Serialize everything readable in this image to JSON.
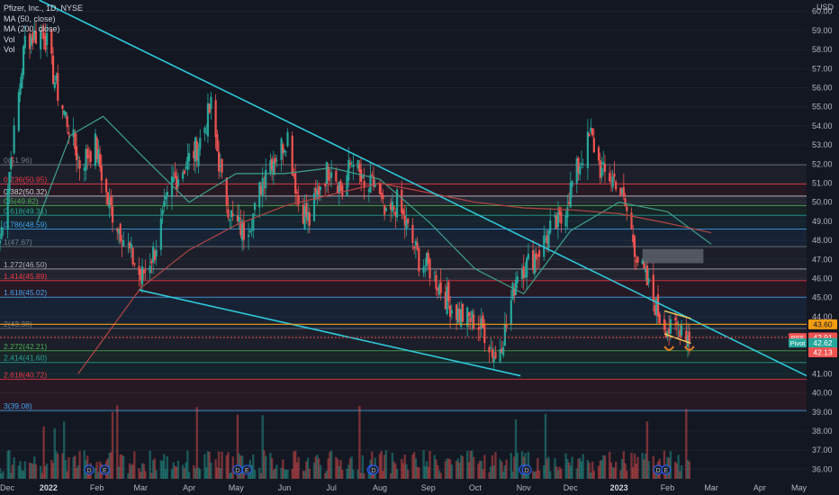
{
  "header": {
    "symbol_title": "Pfizer, Inc., 1D, NYSE",
    "indicators": [
      "MA (50, close)",
      "MA (200, close)",
      "Vol",
      "Vol"
    ],
    "currency": "USD"
  },
  "colors": {
    "background": "#131722",
    "up_candle": "#26a69a",
    "down_candle": "#ef5350",
    "trendline": "#2ec7d8",
    "ma50": "#3fa08c",
    "ma200": "#b24545",
    "fib_line": "#5a6c8a",
    "price_badge": "#ef5350",
    "orange_level": "#f39c12",
    "pattern": "#e67e22"
  },
  "fib_levels": [
    {
      "label": "0(51.96)",
      "price": 51.96,
      "color": "#787b86"
    },
    {
      "label": "0.236(50.95)",
      "price": 50.95,
      "color": "#f23645"
    },
    {
      "label": "0.382(50.32)",
      "price": 50.32,
      "color": "#d1d4dc"
    },
    {
      "label": "0.5(49.82)",
      "price": 49.82,
      "color": "#4caf50"
    },
    {
      "label": "0.618(49.31)",
      "price": 49.31,
      "color": "#26a69a"
    },
    {
      "label": "0.786(48.59)",
      "price": 48.59,
      "color": "#42a5f5"
    },
    {
      "label": "1(47.67)",
      "price": 47.67,
      "color": "#787b86"
    },
    {
      "label": "1.272(46.50)",
      "price": 46.5,
      "color": "#b2b5be"
    },
    {
      "label": "1.414(45.89)",
      "price": 45.89,
      "color": "#f23645"
    },
    {
      "label": "1.618(45.02)",
      "price": 45.02,
      "color": "#42a5f5"
    },
    {
      "label": "2(43.38)",
      "price": 43.38,
      "color": "#787b86"
    },
    {
      "label": "2.272(42.21)",
      "price": 42.21,
      "color": "#4caf50"
    },
    {
      "label": "2.414(41.60)",
      "price": 41.6,
      "color": "#26a69a"
    },
    {
      "label": "2.618(40.72)",
      "price": 40.72,
      "color": "#f23645"
    },
    {
      "label": "3(39.08)",
      "price": 39.08,
      "color": "#42a5f5"
    }
  ],
  "price_labels": [
    {
      "text": "43.60",
      "price": 43.6,
      "bg": "#f39c12",
      "fg": "#131722"
    },
    {
      "text": "PFE",
      "price": 42.9,
      "bg": "#ef5350",
      "fg": "#ffffff",
      "pos": "tag"
    },
    {
      "text": "42.91",
      "price": 42.91,
      "bg": "#ef5350",
      "fg": "#ffffff"
    },
    {
      "text": "Pivot",
      "price": 42.62,
      "bg": "#26a69a",
      "fg": "#ffffff",
      "pos": "tag"
    },
    {
      "text": "42.62",
      "price": 42.62,
      "bg": "#26a69a",
      "fg": "#ffffff"
    },
    {
      "text": "42.13",
      "price": 42.13,
      "bg": "#ef5350",
      "fg": "#ffffff"
    }
  ],
  "chart_data": {
    "type": "candlestick",
    "title": "Pfizer, Inc., 1D, NYSE",
    "ylabel": "USD",
    "ylim": [
      35.5,
      60.6
    ],
    "y_ticks": [
      36.0,
      37.0,
      38.0,
      39.0,
      40.0,
      41.0,
      42.0,
      43.0,
      44.0,
      45.0,
      46.0,
      47.0,
      48.0,
      49.0,
      50.0,
      51.0,
      52.0,
      53.0,
      54.0,
      55.0,
      56.0,
      57.0,
      58.0,
      59.0,
      60.0
    ],
    "x_ticks": [
      "Dec",
      "2022",
      "Feb",
      "Mar",
      "Apr",
      "May",
      "Jun",
      "Jul",
      "Aug",
      "Sep",
      "Oct",
      "Nov",
      "Dec",
      "2023",
      "Feb",
      "Mar",
      "Apr",
      "May"
    ],
    "x_range": [
      "2021-12-01",
      "2023-05-01"
    ],
    "close_series_anchors": [
      [
        "2021-12-01",
        48.0
      ],
      [
        "2021-12-10",
        53.5
      ],
      [
        "2021-12-17",
        58.5
      ],
      [
        "2021-12-29",
        59.0
      ],
      [
        "2022-01-06",
        56.0
      ],
      [
        "2022-01-14",
        54.0
      ],
      [
        "2022-01-21",
        52.0
      ],
      [
        "2022-01-31",
        53.0
      ],
      [
        "2022-02-08",
        50.0
      ],
      [
        "2022-02-16",
        48.5
      ],
      [
        "2022-02-24",
        47.0
      ],
      [
        "2022-03-01",
        46.0
      ],
      [
        "2022-03-10",
        47.5
      ],
      [
        "2022-03-21",
        51.0
      ],
      [
        "2022-03-30",
        52.0
      ],
      [
        "2022-04-07",
        53.0
      ],
      [
        "2022-04-15",
        55.0
      ],
      [
        "2022-04-22",
        51.0
      ],
      [
        "2022-04-29",
        49.0
      ],
      [
        "2022-05-06",
        48.5
      ],
      [
        "2022-05-13",
        49.5
      ],
      [
        "2022-05-20",
        52.0
      ],
      [
        "2022-05-27",
        52.5
      ],
      [
        "2022-06-03",
        53.5
      ],
      [
        "2022-06-10",
        50.0
      ],
      [
        "2022-06-17",
        49.0
      ],
      [
        "2022-06-24",
        51.0
      ],
      [
        "2022-07-01",
        52.0
      ],
      [
        "2022-07-08",
        50.5
      ],
      [
        "2022-07-15",
        52.5
      ],
      [
        "2022-07-22",
        50.5
      ],
      [
        "2022-07-29",
        51.0
      ],
      [
        "2022-08-05",
        49.0
      ],
      [
        "2022-08-12",
        50.0
      ],
      [
        "2022-08-19",
        48.5
      ],
      [
        "2022-08-26",
        47.0
      ],
      [
        "2022-09-02",
        46.5
      ],
      [
        "2022-09-09",
        45.5
      ],
      [
        "2022-09-16",
        44.5
      ],
      [
        "2022-09-23",
        44.0
      ],
      [
        "2022-09-30",
        43.8
      ],
      [
        "2022-10-07",
        43.2
      ],
      [
        "2022-10-14",
        41.8
      ],
      [
        "2022-10-21",
        43.5
      ],
      [
        "2022-10-28",
        46.5
      ],
      [
        "2022-11-04",
        46.8
      ],
      [
        "2022-11-11",
        47.5
      ],
      [
        "2022-11-18",
        48.5
      ],
      [
        "2022-11-25",
        49.0
      ],
      [
        "2022-12-02",
        51.0
      ],
      [
        "2022-12-09",
        52.5
      ],
      [
        "2022-12-14",
        53.5
      ],
      [
        "2022-12-21",
        51.5
      ],
      [
        "2022-12-30",
        51.2
      ],
      [
        "2023-01-06",
        49.5
      ],
      [
        "2023-01-13",
        47.0
      ],
      [
        "2023-01-20",
        45.5
      ],
      [
        "2023-01-27",
        44.0
      ],
      [
        "2023-02-03",
        43.2
      ],
      [
        "2023-02-10",
        43.6
      ],
      [
        "2023-02-15",
        42.9
      ]
    ],
    "series": [
      {
        "name": "MA (50, close)",
        "type": "line",
        "points": [
          [
            "2021-12-25",
            49.0
          ],
          [
            "2022-01-15",
            53.5
          ],
          [
            "2022-02-05",
            54.5
          ],
          [
            "2022-03-01",
            52.5
          ],
          [
            "2022-04-01",
            50.0
          ],
          [
            "2022-05-01",
            51.5
          ],
          [
            "2022-06-01",
            51.5
          ],
          [
            "2022-07-01",
            51.8
          ],
          [
            "2022-08-01",
            51.2
          ],
          [
            "2022-09-01",
            49.0
          ],
          [
            "2022-10-01",
            46.5
          ],
          [
            "2022-11-01",
            45.2
          ],
          [
            "2022-12-01",
            48.5
          ],
          [
            "2023-01-01",
            50.0
          ],
          [
            "2023-02-01",
            49.5
          ],
          [
            "2023-03-01",
            47.8
          ]
        ]
      },
      {
        "name": "MA (200, close)",
        "type": "line",
        "points": [
          [
            "2022-01-20",
            41.0
          ],
          [
            "2022-03-01",
            45.5
          ],
          [
            "2022-04-01",
            47.5
          ],
          [
            "2022-05-01",
            48.8
          ],
          [
            "2022-06-01",
            49.8
          ],
          [
            "2022-07-01",
            50.4
          ],
          [
            "2022-08-01",
            51.0
          ],
          [
            "2022-09-01",
            50.5
          ],
          [
            "2022-10-01",
            50.0
          ],
          [
            "2022-11-01",
            49.7
          ],
          [
            "2022-12-01",
            49.6
          ],
          [
            "2023-01-01",
            49.4
          ],
          [
            "2023-02-01",
            48.9
          ],
          [
            "2023-03-01",
            48.4
          ]
        ]
      }
    ],
    "volume": {
      "scale_note": "",
      "baseline_price": 35.5
    },
    "trendlines": [
      {
        "from": [
          "2021-12-26",
          60.6
        ],
        "to": [
          "2023-05-01",
          40.9
        ]
      },
      {
        "from": [
          "2022-02-28",
          45.4
        ],
        "to": [
          "2022-10-30",
          40.9
        ]
      }
    ],
    "annotations": [
      {
        "type": "rectangle",
        "from": [
          "2023-01-16",
          47.55
        ],
        "to": [
          "2023-02-24",
          46.8
        ]
      },
      {
        "type": "wedge",
        "upper": [
          [
            "2023-01-30",
            44.3
          ],
          [
            "2023-02-16",
            43.9
          ]
        ],
        "lower": [
          [
            "2023-01-30",
            43.1
          ],
          [
            "2023-02-16",
            42.6
          ]
        ]
      },
      {
        "type": "smile",
        "at": [
          "2023-02-02",
          42.3
        ]
      },
      {
        "type": "smile",
        "at": [
          "2023-02-15",
          42.3
        ]
      }
    ],
    "markers": [
      {
        "label": "D",
        "date": "2022-01-27"
      },
      {
        "label": "E",
        "date": "2022-02-06"
      },
      {
        "label": "D",
        "date": "2022-05-02"
      },
      {
        "label": "E",
        "date": "2022-05-08"
      },
      {
        "label": "E",
        "date": "2022-07-27"
      },
      {
        "label": "D",
        "date": "2022-07-28"
      },
      {
        "label": "E",
        "date": "2022-11-01"
      },
      {
        "label": "D",
        "date": "2022-11-03"
      },
      {
        "label": "D",
        "date": "2023-01-26"
      },
      {
        "label": "E",
        "date": "2023-01-31"
      }
    ]
  }
}
